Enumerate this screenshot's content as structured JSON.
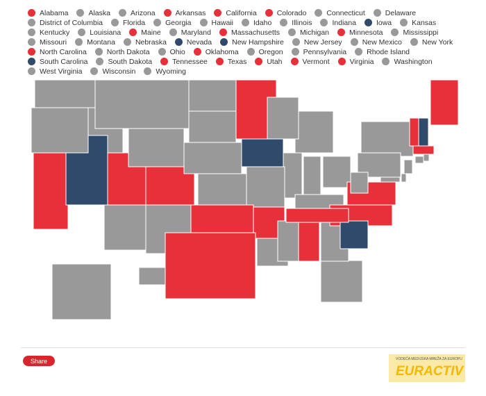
{
  "legend": [
    {
      "name": "Alabama",
      "color": "#e8303a"
    },
    {
      "name": "Alaska",
      "color": "#999999"
    },
    {
      "name": "Arizona",
      "color": "#999999"
    },
    {
      "name": "Arkansas",
      "color": "#e8303a"
    },
    {
      "name": "California",
      "color": "#e8303a"
    },
    {
      "name": "Colorado",
      "color": "#e8303a"
    },
    {
      "name": "Connecticut",
      "color": "#999999"
    },
    {
      "name": "Delaware",
      "color": "#999999"
    },
    {
      "name": "District of Columbia",
      "color": "#999999"
    },
    {
      "name": "Florida",
      "color": "#999999"
    },
    {
      "name": "Georgia",
      "color": "#999999"
    },
    {
      "name": "Hawaii",
      "color": "#999999"
    },
    {
      "name": "Idaho",
      "color": "#999999"
    },
    {
      "name": "Illinois",
      "color": "#999999"
    },
    {
      "name": "Indiana",
      "color": "#999999"
    },
    {
      "name": "Iowa",
      "color": "#2f4a6b"
    },
    {
      "name": "Kansas",
      "color": "#999999"
    },
    {
      "name": "Kentucky",
      "color": "#999999"
    },
    {
      "name": "Louisiana",
      "color": "#999999"
    },
    {
      "name": "Maine",
      "color": "#e8303a"
    },
    {
      "name": "Maryland",
      "color": "#999999"
    },
    {
      "name": "Massachusetts",
      "color": "#e8303a"
    },
    {
      "name": "Michigan",
      "color": "#999999"
    },
    {
      "name": "Minnesota",
      "color": "#e8303a"
    },
    {
      "name": "Mississippi",
      "color": "#999999"
    },
    {
      "name": "Missouri",
      "color": "#999999"
    },
    {
      "name": "Montana",
      "color": "#999999"
    },
    {
      "name": "Nebraska",
      "color": "#999999"
    },
    {
      "name": "Nevada",
      "color": "#2f4a6b"
    },
    {
      "name": "New Hampshire",
      "color": "#2f4a6b"
    },
    {
      "name": "New Jersey",
      "color": "#999999"
    },
    {
      "name": "New Mexico",
      "color": "#999999"
    },
    {
      "name": "New York",
      "color": "#999999"
    },
    {
      "name": "North Carolina",
      "color": "#e8303a"
    },
    {
      "name": "North Dakota",
      "color": "#999999"
    },
    {
      "name": "Ohio",
      "color": "#999999"
    },
    {
      "name": "Oklahoma",
      "color": "#e8303a"
    },
    {
      "name": "Oregon",
      "color": "#999999"
    },
    {
      "name": "Pennsylvania",
      "color": "#999999"
    },
    {
      "name": "Rhode Island",
      "color": "#999999"
    },
    {
      "name": "South Carolina",
      "color": "#2f4a6b"
    },
    {
      "name": "South Dakota",
      "color": "#999999"
    },
    {
      "name": "Tennessee",
      "color": "#e8303a"
    },
    {
      "name": "Texas",
      "color": "#e8303a"
    },
    {
      "name": "Utah",
      "color": "#e8303a"
    },
    {
      "name": "Vermont",
      "color": "#e8303a"
    },
    {
      "name": "Virginia",
      "color": "#e8303a"
    },
    {
      "name": "Washington",
      "color": "#999999"
    },
    {
      "name": "West Virginia",
      "color": "#999999"
    },
    {
      "name": "Wisconsin",
      "color": "#999999"
    },
    {
      "name": "Wyoming",
      "color": "#999999"
    }
  ],
  "share": "Share",
  "logo_tagline": "VODEĆA MEDIJSKA MREŽA ZA EUROPU",
  "logo": "EURACTIV"
}
